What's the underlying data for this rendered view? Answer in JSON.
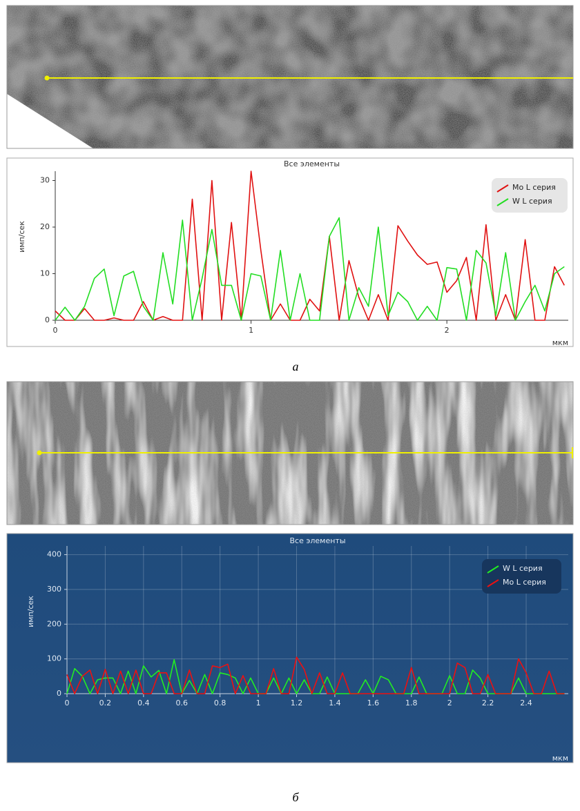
{
  "chart_data": [
    {
      "type": "line",
      "title": "Все элементы",
      "x_label": "мкм",
      "y_label": "имп/сек",
      "x": [
        0,
        0.05,
        0.1,
        0.15,
        0.2,
        0.25,
        0.3,
        0.35,
        0.4,
        0.45,
        0.5,
        0.55,
        0.6,
        0.65,
        0.7,
        0.75,
        0.8,
        0.85,
        0.9,
        0.95,
        1,
        1.05,
        1.1,
        1.15,
        1.2,
        1.25,
        1.3,
        1.35,
        1.4,
        1.45,
        1.5,
        1.55,
        1.6,
        1.65,
        1.7,
        1.75,
        1.8,
        1.85,
        1.9,
        1.95,
        2,
        2.05,
        2.1,
        2.15,
        2.2,
        2.25,
        2.3,
        2.35,
        2.4,
        2.45,
        2.5,
        2.55,
        2.6
      ],
      "series": [
        {
          "name": "Mo L серия",
          "color": "#e01010",
          "values": [
            2,
            0,
            0,
            2.5,
            0,
            0,
            0.5,
            0,
            0,
            4,
            0,
            0.8,
            0,
            0,
            26,
            0,
            30,
            0,
            21,
            0,
            32,
            15,
            0,
            3.5,
            0,
            0,
            4.5,
            2,
            18,
            0,
            12.8,
            5,
            0,
            5.5,
            0,
            20.3,
            17,
            14,
            12,
            12.5,
            6,
            8.5,
            13.5,
            0,
            20.5,
            0,
            5.5,
            0,
            17.3,
            0,
            0,
            11.5,
            7.5
          ]
        },
        {
          "name": "W L серия",
          "color": "#22dd22",
          "values": [
            0,
            2.8,
            0,
            3,
            9,
            11,
            1,
            9.5,
            10.5,
            3,
            0,
            14.5,
            3.5,
            21.5,
            0,
            9,
            19.5,
            7.5,
            7.5,
            0,
            10,
            9.5,
            0,
            15,
            0,
            10,
            0,
            0,
            18,
            22,
            0,
            7,
            3,
            20,
            1,
            6,
            4,
            0,
            3,
            0,
            11.3,
            11,
            0,
            15,
            12.3,
            1,
            14.5,
            0,
            4,
            7.5,
            2,
            10,
            11.5
          ]
        }
      ],
      "xlim": [
        0,
        2.62
      ],
      "xticks": [
        0,
        1,
        2
      ],
      "ylim": [
        0,
        32
      ],
      "yticks": [
        0,
        10,
        20,
        30
      ],
      "grid": false,
      "legend": "top-right"
    },
    {
      "type": "line",
      "title": "Все элементы",
      "x_label": "мкм",
      "y_label": "имп/сек",
      "x": [
        0,
        0.04,
        0.08,
        0.12,
        0.16,
        0.2,
        0.24,
        0.28,
        0.32,
        0.36,
        0.4,
        0.44,
        0.48,
        0.52,
        0.56,
        0.6,
        0.64,
        0.68,
        0.72,
        0.76,
        0.8,
        0.84,
        0.88,
        0.92,
        0.96,
        1,
        1.04,
        1.08,
        1.12,
        1.16,
        1.2,
        1.24,
        1.28,
        1.32,
        1.36,
        1.4,
        1.44,
        1.48,
        1.52,
        1.56,
        1.6,
        1.64,
        1.68,
        1.72,
        1.76,
        1.8,
        1.84,
        1.88,
        1.92,
        1.96,
        2,
        2.04,
        2.08,
        2.12,
        2.16,
        2.2,
        2.24,
        2.28,
        2.32,
        2.36,
        2.4,
        2.44,
        2.48,
        2.52,
        2.56,
        2.6
      ],
      "series": [
        {
          "name": "W L серия",
          "color": "#22ee22",
          "values": [
            0,
            72,
            50,
            0,
            40,
            45,
            45,
            0,
            65,
            0,
            80,
            48,
            67,
            0,
            98,
            0,
            38,
            0,
            55,
            0,
            60,
            55,
            45,
            0,
            45,
            0,
            0,
            45,
            0,
            45,
            0,
            40,
            0,
            0,
            48,
            0,
            0,
            0,
            0,
            40,
            0,
            50,
            40,
            0,
            0,
            0,
            48,
            0,
            0,
            0,
            52,
            0,
            0,
            68,
            45,
            0,
            0,
            0,
            0,
            45,
            0,
            0,
            0,
            0,
            0,
            0
          ]
        },
        {
          "name": "Mo L серия",
          "color": "#ee1010",
          "values": [
            55,
            0,
            50,
            68,
            0,
            70,
            0,
            65,
            0,
            68,
            0,
            0,
            60,
            60,
            0,
            0,
            68,
            0,
            0,
            80,
            75,
            85,
            0,
            52,
            0,
            0,
            0,
            72,
            0,
            0,
            105,
            70,
            0,
            60,
            0,
            0,
            60,
            0,
            0,
            0,
            0,
            0,
            0,
            0,
            0,
            75,
            0,
            0,
            0,
            0,
            0,
            88,
            75,
            0,
            0,
            55,
            0,
            0,
            0,
            100,
            60,
            0,
            0,
            65,
            0,
            0
          ]
        }
      ],
      "xlim": [
        0,
        2.62
      ],
      "xticks": [
        0,
        0.2,
        0.4,
        0.6,
        0.8,
        1,
        1.2,
        1.4,
        1.6,
        1.8,
        2,
        2.2,
        2.4
      ],
      "ylim": [
        0,
        425
      ],
      "yticks": [
        0,
        100,
        200,
        300,
        400
      ],
      "grid": true,
      "legend": "top-right"
    }
  ],
  "captions": [
    "а",
    "б"
  ]
}
